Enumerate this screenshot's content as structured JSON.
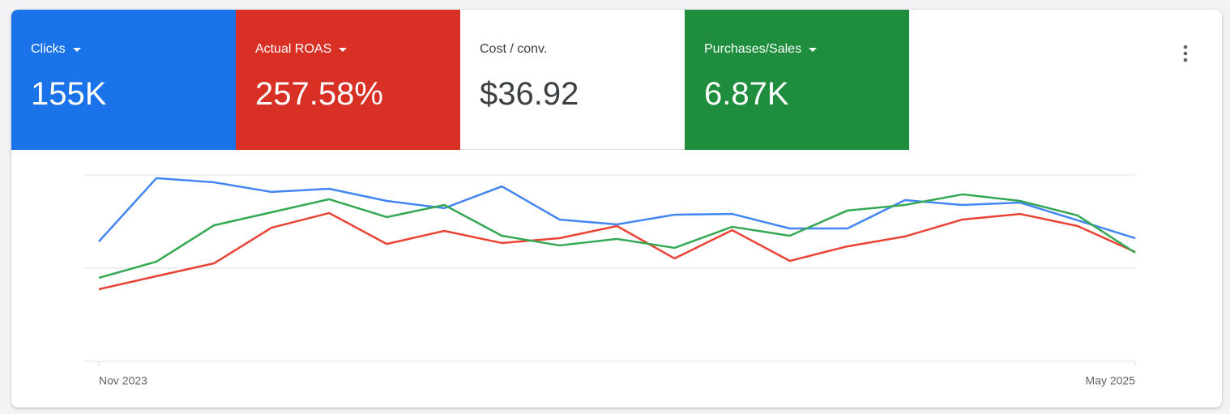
{
  "metrics": [
    {
      "label": "Clicks",
      "value": "155K",
      "background": "#1a73e8",
      "text_color": "#ffffff",
      "dropdown": true
    },
    {
      "label": "Actual ROAS",
      "value": "257.58%",
      "background": "#d93025",
      "text_color": "#ffffff",
      "dropdown": true
    },
    {
      "label": "Cost / conv.",
      "value": "$36.92",
      "background": "#ffffff",
      "text_color": "#3c4043",
      "dropdown": false
    },
    {
      "label": "Purchases/Sales",
      "value": "6.87K",
      "background": "#1e8e3e",
      "text_color": "#ffffff",
      "dropdown": true
    }
  ],
  "chart_data": {
    "type": "line",
    "categories": [
      "Nov 2023",
      null,
      null,
      null,
      null,
      null,
      null,
      null,
      null,
      null,
      null,
      null,
      null,
      null,
      null,
      null,
      null,
      null,
      "May 2025"
    ],
    "ylim": [
      0,
      100
    ],
    "yticks": [
      0,
      50,
      100
    ],
    "grid": true,
    "series": [
      {
        "color": "#4285f4",
        "values": [
          64.3,
          98.3,
          96.1,
          90.9,
          92.6,
          86.1,
          82.2,
          93.9,
          76.1,
          73.5,
          78.7,
          79.1,
          71.3,
          71.3,
          86.5,
          83.9,
          85.2,
          75.7,
          66.1
        ]
      },
      {
        "color": "#ea4335",
        "values": [
          38.7,
          45.7,
          52.6,
          71.7,
          79.6,
          63.0,
          70.0,
          63.5,
          66.1,
          72.6,
          55.2,
          70.4,
          53.9,
          61.7,
          67.0,
          76.1,
          79.1,
          72.6,
          58.7
        ]
      },
      {
        "color": "#34a853",
        "values": [
          44.8,
          53.5,
          73.0,
          80.0,
          87.0,
          77.4,
          83.9,
          67.4,
          62.2,
          65.7,
          60.9,
          72.2,
          67.4,
          80.9,
          83.9,
          89.6,
          86.1,
          78.3,
          58.3
        ]
      }
    ]
  }
}
